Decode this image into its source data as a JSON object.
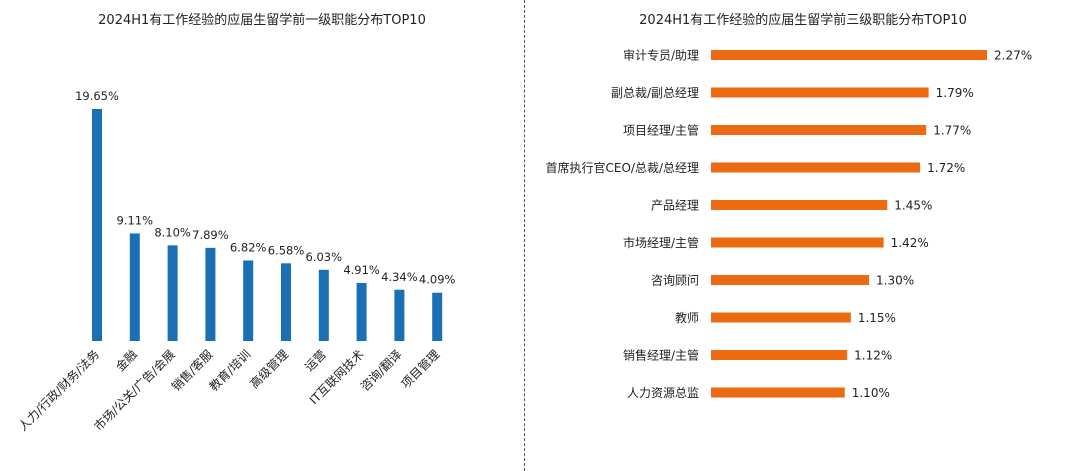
{
  "chart_data": [
    {
      "type": "bar",
      "title": "2024H1有工作经验的应届生留学前一级职能分布TOP10",
      "categories": [
        "人力/行政/财务/法务",
        "金融",
        "市场/公关/广告/会展",
        "销售/客服",
        "教育/培训",
        "高级管理",
        "运营",
        "IT互联网技术",
        "咨询/翻译",
        "项目管理"
      ],
      "values": [
        19.65,
        9.11,
        8.1,
        7.89,
        6.82,
        6.58,
        6.03,
        4.91,
        4.34,
        4.09
      ],
      "value_labels": [
        "19.65%",
        "9.11%",
        "8.10%",
        "7.89%",
        "6.82%",
        "6.58%",
        "6.03%",
        "4.91%",
        "4.34%",
        "4.09%"
      ],
      "unit": "%",
      "color": "#1a6fb5",
      "orientation": "vertical",
      "grid": false,
      "axes_visible": false
    },
    {
      "type": "bar",
      "title": "2024H1有工作经验的应届生留学前三级职能分布TOP10",
      "categories": [
        "审计专员/助理",
        "副总裁/副总经理",
        "项目经理/主管",
        "首席执行官CEO/总裁/总经理",
        "产品经理",
        "市场经理/主管",
        "咨询顾问",
        "教师",
        "销售经理/主管",
        "人力资源总监"
      ],
      "values": [
        2.27,
        1.79,
        1.77,
        1.72,
        1.45,
        1.42,
        1.3,
        1.15,
        1.12,
        1.1
      ],
      "value_labels": [
        "2.27%",
        "1.79%",
        "1.77%",
        "1.72%",
        "1.45%",
        "1.42%",
        "1.30%",
        "1.15%",
        "1.12%",
        "1.10%"
      ],
      "unit": "%",
      "color": "#ee6a12",
      "orientation": "horizontal",
      "grid": false,
      "axes_visible": false
    }
  ]
}
